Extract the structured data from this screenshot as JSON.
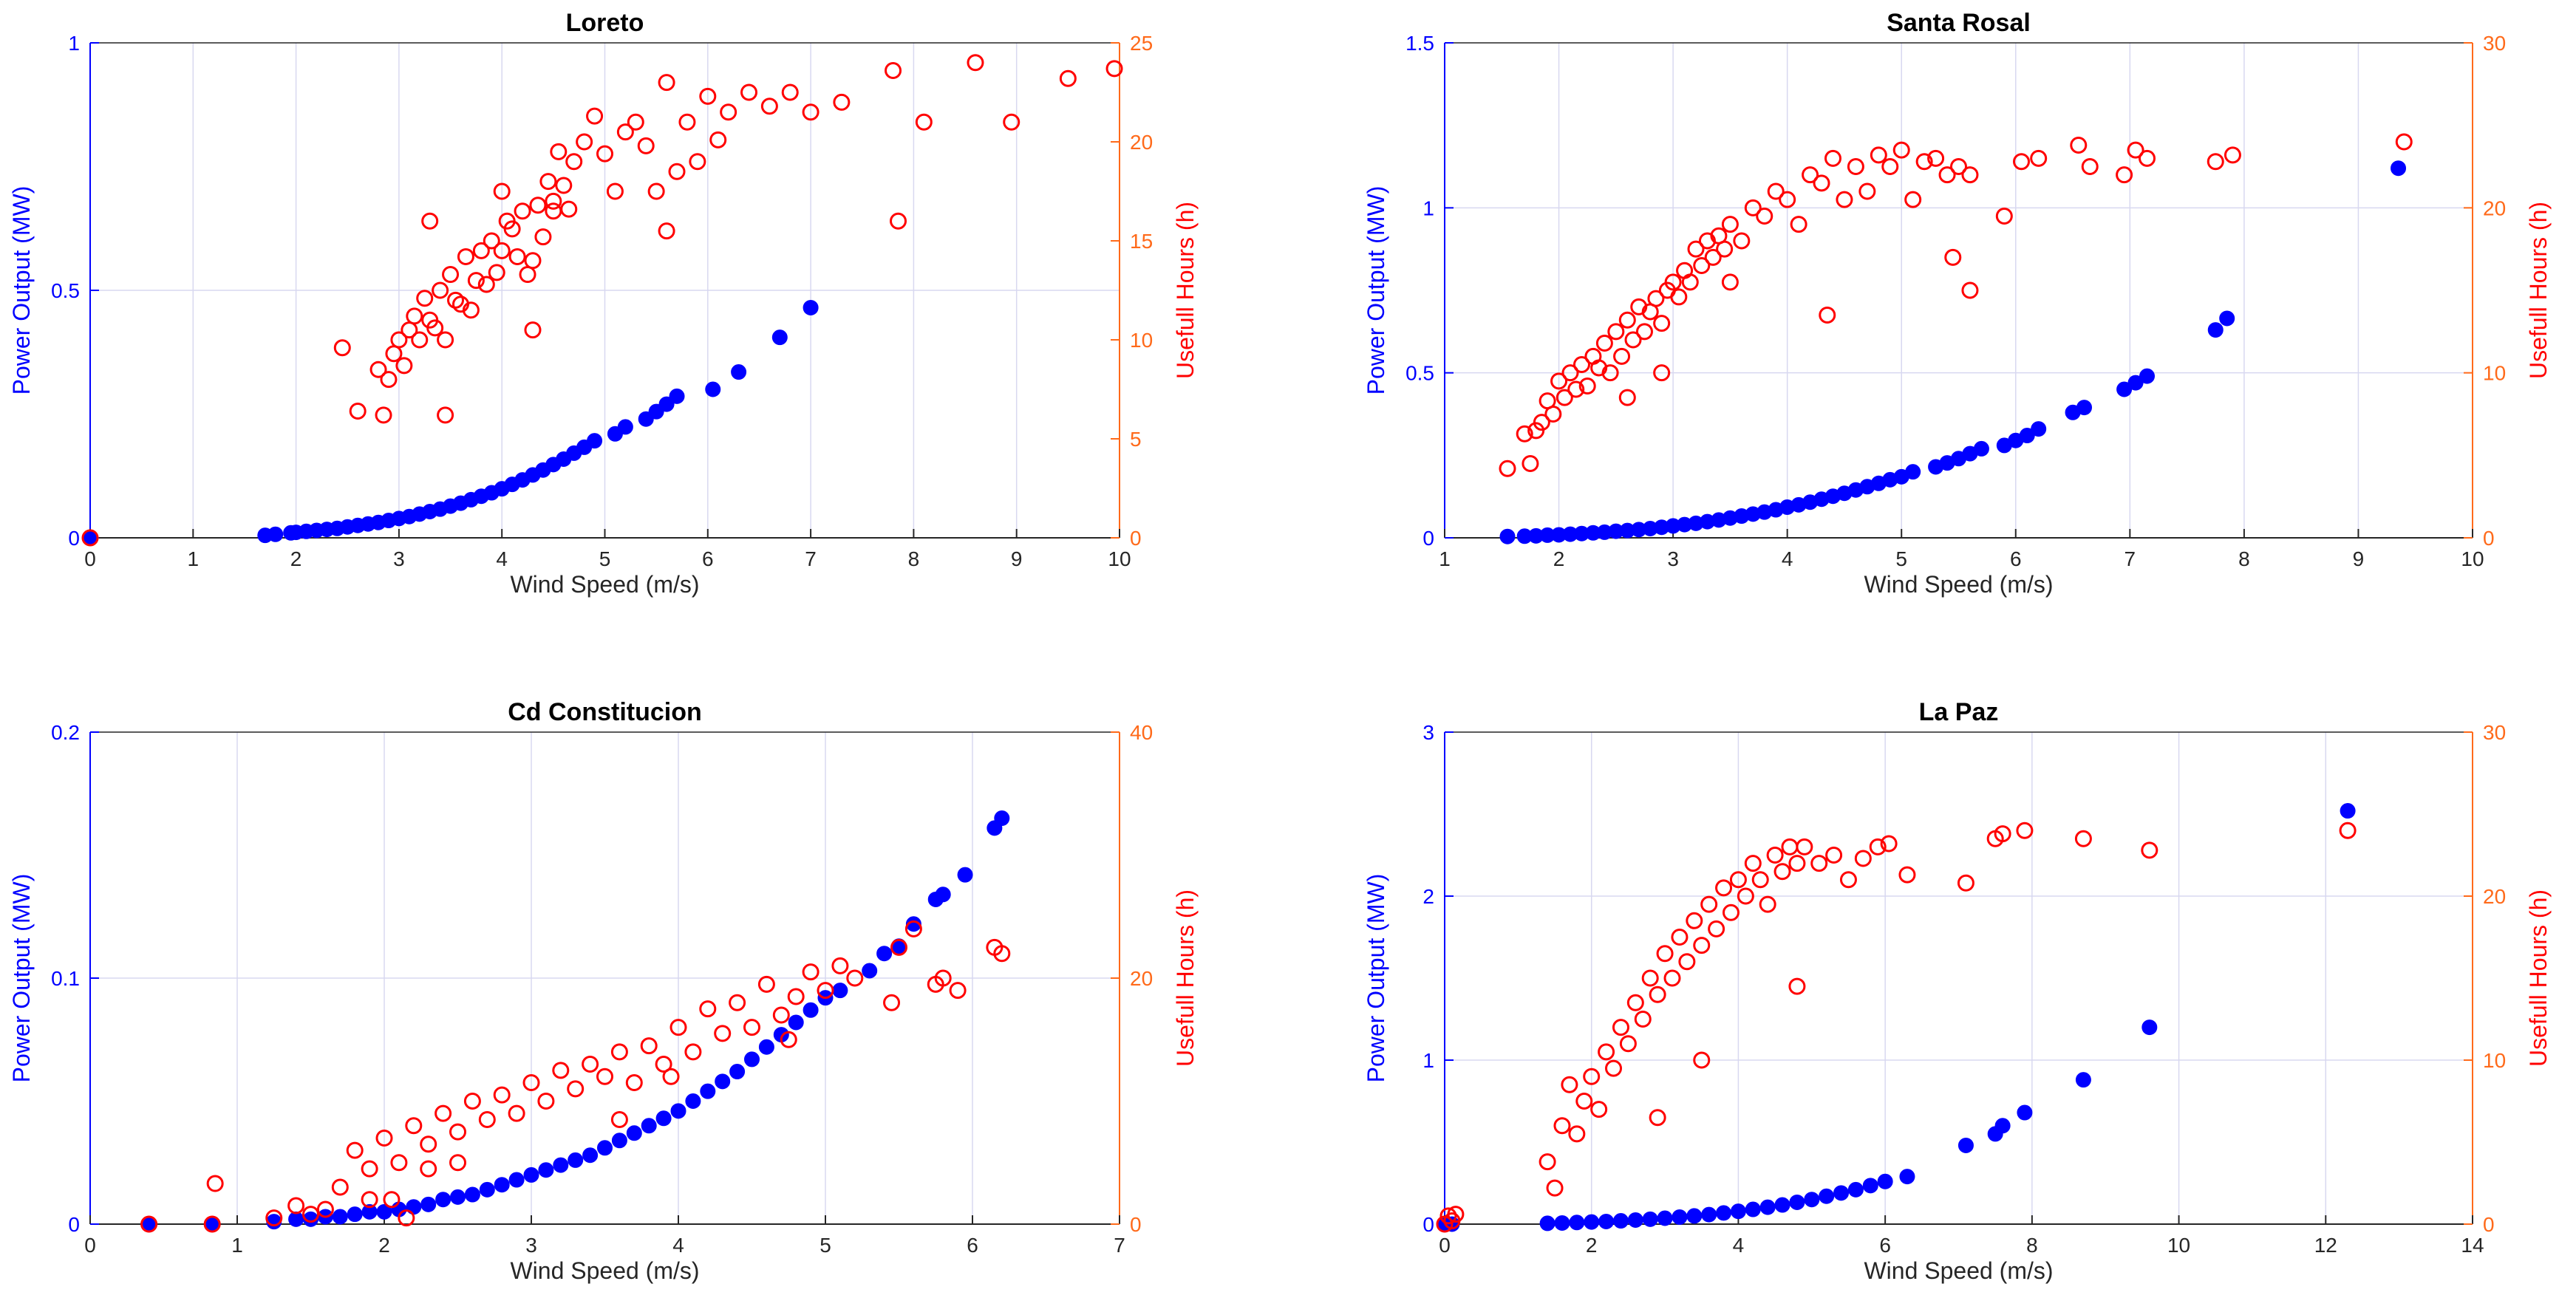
{
  "colors": {
    "power": "#0000ff",
    "hours": "#ff0000",
    "right_axis": "#ff6a1a",
    "grid": "#d8d8f0",
    "axis": "#262626"
  },
  "chart_data": [
    {
      "type": "scatter",
      "title": "Loreto",
      "xlabel": "Wind Speed (m/s)",
      "ylabel_left": "Power Output (MW)",
      "ylabel_right": "Usefull Hours (h)",
      "xlim": [
        0,
        10
      ],
      "xticks": [
        0,
        1,
        2,
        3,
        4,
        5,
        6,
        7,
        8,
        9,
        10
      ],
      "ylim_left": [
        0,
        1
      ],
      "yticks_left": [
        0,
        0.5,
        1
      ],
      "ylim_right": [
        0,
        25
      ],
      "yticks_right": [
        0,
        5,
        10,
        15,
        20,
        25
      ],
      "series": [
        {
          "name": "Power Output",
          "axis": "left",
          "marker": "filled-circle",
          "x": [
            0,
            1.7,
            1.8,
            1.95,
            2.0,
            2.1,
            2.2,
            2.3,
            2.4,
            2.5,
            2.6,
            2.7,
            2.8,
            2.9,
            3.0,
            3.1,
            3.2,
            3.3,
            3.4,
            3.5,
            3.6,
            3.7,
            3.8,
            3.9,
            4.0,
            4.1,
            4.2,
            4.3,
            4.4,
            4.5,
            4.6,
            4.7,
            4.8,
            4.9,
            5.1,
            5.2,
            5.4,
            5.5,
            5.6,
            5.7,
            6.05,
            6.3,
            6.7,
            7.0
          ],
          "y": [
            0,
            0.005,
            0.007,
            0.01,
            0.011,
            0.013,
            0.015,
            0.017,
            0.019,
            0.022,
            0.025,
            0.028,
            0.031,
            0.035,
            0.039,
            0.043,
            0.048,
            0.053,
            0.058,
            0.064,
            0.07,
            0.077,
            0.084,
            0.091,
            0.099,
            0.108,
            0.117,
            0.127,
            0.137,
            0.148,
            0.159,
            0.171,
            0.183,
            0.196,
            0.21,
            0.224,
            0.24,
            0.255,
            0.27,
            0.286,
            0.3,
            0.335,
            0.405,
            0.465
          ]
        },
        {
          "name": "Usefull Hours",
          "axis": "right",
          "marker": "open-circle",
          "x": [
            0,
            2.45,
            2.6,
            2.8,
            2.85,
            2.9,
            2.95,
            3.0,
            3.05,
            3.1,
            3.15,
            3.2,
            3.25,
            3.3,
            3.35,
            3.4,
            3.45,
            3.5,
            3.55,
            3.6,
            3.65,
            3.7,
            3.75,
            3.8,
            3.85,
            3.9,
            3.95,
            4.0,
            4.05,
            4.1,
            4.15,
            4.2,
            4.25,
            4.3,
            4.35,
            4.4,
            4.45,
            4.5,
            4.55,
            4.6,
            4.65,
            4.7,
            4.8,
            4.9,
            5.0,
            5.1,
            5.2,
            5.3,
            5.4,
            5.5,
            5.6,
            5.7,
            5.8,
            5.9,
            6.0,
            6.1,
            6.2,
            6.4,
            6.6,
            6.8,
            7.0,
            7.3,
            7.8,
            7.85,
            8.1,
            8.6,
            8.95,
            9.5,
            9.95,
            3.45,
            4.3,
            5.6,
            3.3,
            4.0,
            4.5
          ],
          "y": [
            0,
            9.6,
            6.4,
            8.5,
            6.2,
            8.0,
            9.3,
            10.0,
            8.7,
            10.5,
            11.2,
            10.0,
            12.1,
            11.0,
            10.6,
            12.5,
            10.0,
            13.3,
            12.0,
            11.8,
            14.2,
            11.5,
            13.0,
            14.5,
            12.8,
            15.0,
            13.4,
            14.5,
            16.0,
            15.6,
            14.2,
            16.5,
            13.3,
            10.5,
            16.8,
            15.2,
            18.0,
            17.0,
            19.5,
            17.8,
            16.6,
            19.0,
            20.0,
            21.3,
            19.4,
            17.5,
            20.5,
            21.0,
            19.8,
            17.5,
            23.0,
            18.5,
            21.0,
            19.0,
            22.3,
            20.1,
            21.5,
            22.5,
            21.8,
            22.5,
            21.5,
            22.0,
            23.6,
            16.0,
            21.0,
            24.0,
            21.0,
            23.2,
            23.7,
            6.2,
            14.0,
            15.5,
            16.0,
            17.5,
            16.5
          ]
        }
      ]
    },
    {
      "type": "scatter",
      "title": "Santa Rosal",
      "xlabel": "Wind Speed (m/s)",
      "ylabel_left": "Power Output (MW)",
      "ylabel_right": "Usefull Hours (h)",
      "xlim": [
        1,
        10
      ],
      "xticks": [
        1,
        2,
        3,
        4,
        5,
        6,
        7,
        8,
        9,
        10
      ],
      "ylim_left": [
        0,
        1.5
      ],
      "yticks_left": [
        0,
        0.5,
        1,
        1.5
      ],
      "ylim_right": [
        0,
        30
      ],
      "yticks_right": [
        0,
        10,
        20,
        30
      ],
      "series": [
        {
          "name": "Power Output",
          "axis": "left",
          "marker": "filled-circle",
          "x": [
            1.55,
            1.7,
            1.8,
            1.9,
            2.0,
            2.1,
            2.2,
            2.3,
            2.4,
            2.5,
            2.6,
            2.7,
            2.8,
            2.9,
            3.0,
            3.1,
            3.2,
            3.3,
            3.4,
            3.5,
            3.6,
            3.7,
            3.8,
            3.9,
            4.0,
            4.1,
            4.2,
            4.3,
            4.4,
            4.5,
            4.6,
            4.7,
            4.8,
            4.9,
            5.0,
            5.1,
            5.3,
            5.4,
            5.5,
            5.6,
            5.7,
            5.9,
            6.0,
            6.1,
            6.2,
            6.5,
            6.6,
            6.95,
            7.05,
            7.15,
            7.75,
            7.85,
            9.35
          ],
          "y": [
            0.004,
            0.005,
            0.006,
            0.008,
            0.009,
            0.011,
            0.013,
            0.015,
            0.017,
            0.02,
            0.022,
            0.025,
            0.028,
            0.032,
            0.036,
            0.04,
            0.044,
            0.049,
            0.054,
            0.06,
            0.066,
            0.072,
            0.078,
            0.085,
            0.093,
            0.1,
            0.108,
            0.117,
            0.126,
            0.135,
            0.145,
            0.155,
            0.165,
            0.176,
            0.185,
            0.2,
            0.215,
            0.227,
            0.24,
            0.255,
            0.27,
            0.28,
            0.295,
            0.31,
            0.33,
            0.38,
            0.395,
            0.45,
            0.47,
            0.49,
            0.63,
            0.665,
            1.12
          ]
        },
        {
          "name": "Usefull Hours",
          "axis": "right",
          "marker": "open-circle",
          "x": [
            1.55,
            1.7,
            1.75,
            1.8,
            1.85,
            1.9,
            1.95,
            2.0,
            2.05,
            2.1,
            2.15,
            2.2,
            2.25,
            2.3,
            2.35,
            2.4,
            2.45,
            2.5,
            2.55,
            2.6,
            2.65,
            2.7,
            2.75,
            2.8,
            2.85,
            2.9,
            2.95,
            3.0,
            3.05,
            3.1,
            3.15,
            3.2,
            3.25,
            3.3,
            3.35,
            3.4,
            3.45,
            3.5,
            3.6,
            3.7,
            3.8,
            3.9,
            4.0,
            4.1,
            4.2,
            4.3,
            4.4,
            4.5,
            4.6,
            4.7,
            4.8,
            4.9,
            5.0,
            5.1,
            5.2,
            5.3,
            5.4,
            5.5,
            5.6,
            5.9,
            6.05,
            6.2,
            6.55,
            6.65,
            6.95,
            7.05,
            7.15,
            7.75,
            7.9,
            9.4,
            2.6,
            2.9,
            3.5,
            4.35,
            5.45,
            5.6
          ],
          "y": [
            4.2,
            6.3,
            4.5,
            6.5,
            7.0,
            8.3,
            7.5,
            9.5,
            8.5,
            10.0,
            9.0,
            10.5,
            9.2,
            11.0,
            10.3,
            11.8,
            10.0,
            12.5,
            11.0,
            13.2,
            12.0,
            14.0,
            12.5,
            13.7,
            14.5,
            13.0,
            15.0,
            15.5,
            14.6,
            16.2,
            15.5,
            17.5,
            16.5,
            18.0,
            17.0,
            18.3,
            17.5,
            19.0,
            18.0,
            20.0,
            19.5,
            21.0,
            20.5,
            19.0,
            22.0,
            21.5,
            23.0,
            20.5,
            22.5,
            21.0,
            23.2,
            22.5,
            23.5,
            20.5,
            22.8,
            23.0,
            22.0,
            22.5,
            22.0,
            19.5,
            22.8,
            23.0,
            23.8,
            22.5,
            22.0,
            23.5,
            23.0,
            22.8,
            23.2,
            24.0,
            8.5,
            10.0,
            15.5,
            13.5,
            17.0,
            15.0
          ]
        }
      ]
    },
    {
      "type": "scatter",
      "title": "Cd Constitucion",
      "xlabel": "Wind Speed (m/s)",
      "ylabel_left": "Power Output (MW)",
      "ylabel_right": "Usefull Hours (h)",
      "xlim": [
        0,
        7
      ],
      "xticks": [
        0,
        1,
        2,
        3,
        4,
        5,
        6,
        7
      ],
      "ylim_left": [
        0,
        0.2
      ],
      "yticks_left": [
        0,
        0.1,
        0.2
      ],
      "ylim_right": [
        0,
        40
      ],
      "yticks_right": [
        0,
        20,
        40
      ],
      "series": [
        {
          "name": "Power Output",
          "axis": "left",
          "marker": "filled-circle",
          "x": [
            0.4,
            0.83,
            1.25,
            1.4,
            1.5,
            1.6,
            1.7,
            1.8,
            1.9,
            2.0,
            2.1,
            2.2,
            2.3,
            2.4,
            2.5,
            2.6,
            2.7,
            2.8,
            2.9,
            3.0,
            3.1,
            3.2,
            3.3,
            3.4,
            3.5,
            3.6,
            3.7,
            3.8,
            3.9,
            4.0,
            4.1,
            4.2,
            4.3,
            4.4,
            4.5,
            4.6,
            4.7,
            4.8,
            4.9,
            5.0,
            5.1,
            5.3,
            5.4,
            5.5,
            5.6,
            5.75,
            5.8,
            5.95,
            6.15,
            6.2
          ],
          "y": [
            0,
            0,
            0.001,
            0.002,
            0.002,
            0.003,
            0.003,
            0.004,
            0.005,
            0.005,
            0.006,
            0.007,
            0.008,
            0.01,
            0.011,
            0.012,
            0.014,
            0.016,
            0.018,
            0.02,
            0.022,
            0.024,
            0.026,
            0.028,
            0.031,
            0.034,
            0.037,
            0.04,
            0.043,
            0.046,
            0.05,
            0.054,
            0.058,
            0.062,
            0.067,
            0.072,
            0.077,
            0.082,
            0.087,
            0.092,
            0.095,
            0.103,
            0.11,
            0.113,
            0.122,
            0.132,
            0.134,
            0.142,
            0.161,
            0.165
          ]
        },
        {
          "name": "Usefull Hours",
          "axis": "right",
          "marker": "open-circle",
          "x": [
            0.4,
            0.83,
            0.85,
            1.25,
            1.4,
            1.5,
            1.6,
            1.7,
            1.8,
            1.9,
            2.0,
            2.05,
            2.1,
            2.15,
            2.2,
            2.3,
            2.4,
            2.5,
            2.6,
            2.7,
            2.8,
            2.9,
            3.0,
            3.1,
            3.2,
            3.3,
            3.4,
            3.5,
            3.6,
            3.7,
            3.8,
            3.9,
            4.0,
            4.1,
            4.2,
            4.3,
            4.4,
            4.5,
            4.6,
            4.7,
            4.8,
            4.9,
            5.0,
            5.1,
            5.2,
            5.45,
            5.5,
            5.6,
            5.75,
            5.8,
            5.9,
            6.15,
            6.2,
            2.3,
            3.6,
            4.75,
            1.9,
            2.5,
            3.95
          ],
          "y": [
            0,
            0,
            3.3,
            0.5,
            1.5,
            0.8,
            1.2,
            3.0,
            6.0,
            4.5,
            7.0,
            2.0,
            5.0,
            0.5,
            8.0,
            6.5,
            9.0,
            7.5,
            10.0,
            8.5,
            10.5,
            9.0,
            11.5,
            10.0,
            12.5,
            11.0,
            13.0,
            12.0,
            14.0,
            11.5,
            14.5,
            13.0,
            16.0,
            14.0,
            17.5,
            15.5,
            18.0,
            16.0,
            19.5,
            17.0,
            18.5,
            20.5,
            19.0,
            21.0,
            20.0,
            18.0,
            22.5,
            24.0,
            19.5,
            20.0,
            19.0,
            22.5,
            22.0,
            4.5,
            8.5,
            15.0,
            2.0,
            5.0,
            12.0
          ]
        }
      ]
    },
    {
      "type": "scatter",
      "title": "La Paz",
      "xlabel": "Wind Speed (m/s)",
      "ylabel_left": "Power Output (MW)",
      "ylabel_right": "Usefull Hours (h)",
      "xlim": [
        0,
        14
      ],
      "xticks": [
        0,
        2,
        4,
        6,
        8,
        10,
        12,
        14
      ],
      "ylim_left": [
        0,
        3
      ],
      "yticks_left": [
        0,
        1,
        2,
        3
      ],
      "ylim_right": [
        0,
        30
      ],
      "yticks_right": [
        0,
        10,
        20,
        30
      ],
      "series": [
        {
          "name": "Power Output",
          "axis": "left",
          "marker": "filled-circle",
          "x": [
            0,
            0.1,
            1.4,
            1.6,
            1.8,
            2.0,
            2.2,
            2.4,
            2.6,
            2.8,
            3.0,
            3.2,
            3.4,
            3.6,
            3.8,
            4.0,
            4.2,
            4.4,
            4.6,
            4.8,
            5.0,
            5.2,
            5.4,
            5.6,
            5.8,
            6.0,
            6.3,
            7.1,
            7.5,
            7.6,
            7.9,
            8.7,
            9.6,
            12.3
          ],
          "y": [
            0,
            0,
            0.005,
            0.007,
            0.01,
            0.013,
            0.016,
            0.02,
            0.025,
            0.03,
            0.036,
            0.043,
            0.05,
            0.058,
            0.068,
            0.078,
            0.09,
            0.103,
            0.117,
            0.133,
            0.15,
            0.17,
            0.19,
            0.21,
            0.235,
            0.26,
            0.29,
            0.48,
            0.55,
            0.6,
            0.68,
            0.88,
            1.2,
            2.52
          ]
        },
        {
          "name": "Usefull Hours",
          "axis": "right",
          "marker": "open-circle",
          "x": [
            0,
            0.05,
            0.1,
            0.15,
            1.4,
            1.5,
            1.6,
            1.7,
            1.8,
            1.9,
            2.0,
            2.1,
            2.2,
            2.3,
            2.4,
            2.5,
            2.6,
            2.7,
            2.8,
            2.9,
            3.0,
            3.1,
            3.2,
            3.3,
            3.4,
            3.5,
            3.6,
            3.7,
            3.8,
            3.9,
            4.0,
            4.1,
            4.2,
            4.3,
            4.4,
            4.5,
            4.6,
            4.7,
            4.8,
            4.9,
            5.1,
            5.3,
            5.5,
            5.7,
            5.9,
            6.05,
            6.3,
            7.1,
            7.5,
            7.6,
            7.9,
            8.7,
            9.6,
            12.3,
            2.9,
            3.5,
            4.8
          ],
          "y": [
            0,
            0.5,
            0.2,
            0.6,
            3.8,
            2.2,
            6.0,
            8.5,
            5.5,
            7.5,
            9.0,
            7.0,
            10.5,
            9.5,
            12.0,
            11.0,
            13.5,
            12.5,
            15.0,
            14.0,
            16.5,
            15.0,
            17.5,
            16.0,
            18.5,
            17.0,
            19.5,
            18.0,
            20.5,
            19.0,
            21.0,
            20.0,
            22.0,
            21.0,
            19.5,
            22.5,
            21.5,
            23.0,
            22.0,
            23.0,
            22.0,
            22.5,
            21.0,
            22.3,
            23.0,
            23.2,
            21.3,
            20.8,
            23.5,
            23.8,
            24.0,
            23.5,
            22.8,
            24.0,
            6.5,
            10.0,
            14.5
          ]
        }
      ]
    }
  ]
}
